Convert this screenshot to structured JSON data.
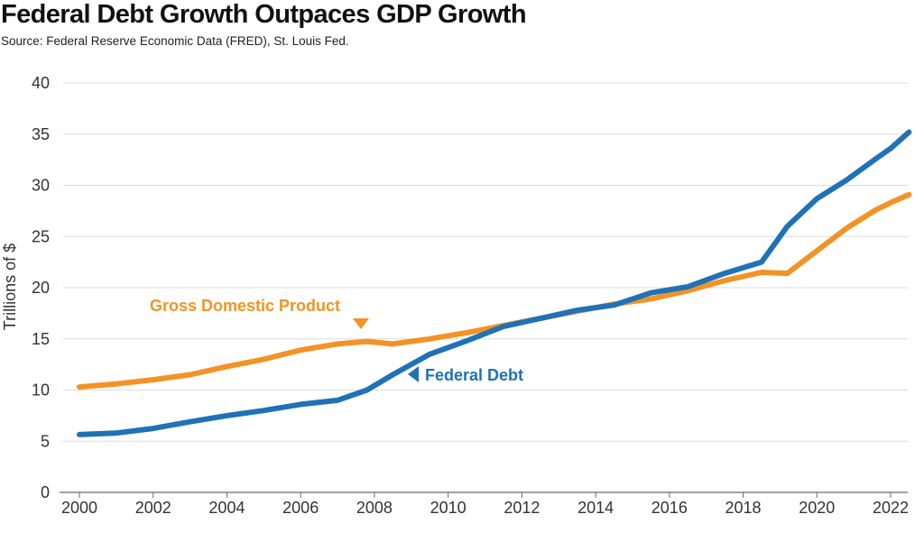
{
  "header": {
    "title": "Federal Debt Growth Outpaces GDP Growth",
    "source": "Source: Federal Reserve Economic Data (FRED), St. Louis Fed."
  },
  "colors": {
    "gdp": "#F39325",
    "debt": "#1F72B6",
    "grid": "#DCDCDC",
    "axis": "#6A6A6A"
  },
  "chart_data": {
    "type": "line",
    "title": "Federal Debt Growth Outpaces GDP Growth",
    "xlabel": "",
    "ylabel": "Trillions of $",
    "xlim": [
      2000,
      2022
    ],
    "ylim": [
      0,
      40
    ],
    "x_ticks": [
      2000,
      2002,
      2004,
      2006,
      2008,
      2010,
      2012,
      2014,
      2016,
      2018,
      2020,
      2022
    ],
    "y_ticks": [
      0,
      5,
      10,
      15,
      20,
      25,
      30,
      35,
      40
    ],
    "grid": true,
    "legend": "direct labels",
    "series": [
      {
        "name": "Gross Domestic Product",
        "color": "#F39325",
        "points": [
          [
            2000.0,
            10.3
          ],
          [
            2001.0,
            10.6
          ],
          [
            2002.0,
            11.0
          ],
          [
            2003.0,
            11.5
          ],
          [
            2004.0,
            12.3
          ],
          [
            2005.0,
            13.0
          ],
          [
            2006.0,
            13.9
          ],
          [
            2007.0,
            14.5
          ],
          [
            2007.8,
            14.75
          ],
          [
            2008.5,
            14.5
          ],
          [
            2009.5,
            15.0
          ],
          [
            2010.5,
            15.6
          ],
          [
            2011.5,
            16.3
          ],
          [
            2012.5,
            17.0
          ],
          [
            2013.5,
            17.7
          ],
          [
            2014.5,
            18.4
          ],
          [
            2015.5,
            18.9
          ],
          [
            2016.5,
            19.7
          ],
          [
            2017.5,
            20.7
          ],
          [
            2018.5,
            21.5
          ],
          [
            2019.2,
            21.4
          ],
          [
            2020.0,
            23.6
          ],
          [
            2020.8,
            25.8
          ],
          [
            2021.6,
            27.6
          ],
          [
            2022.0,
            28.3
          ],
          [
            2022.5,
            29.1
          ]
        ]
      },
      {
        "name": "Federal Debt",
        "color": "#1F72B6",
        "points": [
          [
            2000.0,
            5.65
          ],
          [
            2001.0,
            5.8
          ],
          [
            2002.0,
            6.25
          ],
          [
            2003.0,
            6.9
          ],
          [
            2004.0,
            7.5
          ],
          [
            2005.0,
            8.0
          ],
          [
            2006.0,
            8.6
          ],
          [
            2007.0,
            9.0
          ],
          [
            2007.8,
            10.0
          ],
          [
            2008.5,
            11.5
          ],
          [
            2009.5,
            13.5
          ],
          [
            2010.5,
            14.8
          ],
          [
            2011.5,
            16.2
          ],
          [
            2012.5,
            17.0
          ],
          [
            2013.5,
            17.8
          ],
          [
            2014.5,
            18.3
          ],
          [
            2015.5,
            19.5
          ],
          [
            2016.5,
            20.1
          ],
          [
            2017.5,
            21.4
          ],
          [
            2018.5,
            22.5
          ],
          [
            2019.2,
            26.0
          ],
          [
            2020.0,
            28.7
          ],
          [
            2020.8,
            30.5
          ],
          [
            2021.6,
            32.6
          ],
          [
            2022.0,
            33.6
          ],
          [
            2022.5,
            35.2
          ]
        ]
      }
    ],
    "annotations": [
      {
        "text": "Gross Domestic Product",
        "series": "Gross Domestic Product"
      },
      {
        "text": "Federal Debt",
        "series": "Federal Debt"
      }
    ]
  }
}
